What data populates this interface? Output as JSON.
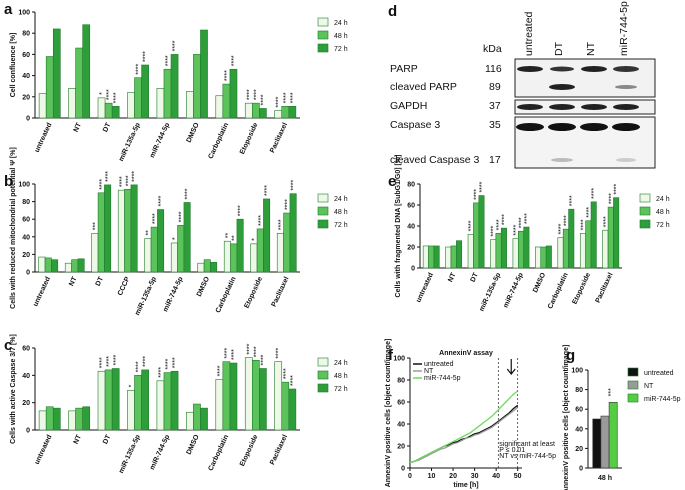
{
  "chart_data": [
    {
      "panel": "a",
      "type": "bar",
      "y_label": "Cell confluence [%]",
      "categories": [
        "untreated",
        "NT",
        "DT",
        "miR-135a-5p",
        "miR-744-5p",
        "DMSO",
        "Carboplatin",
        "Etoposide",
        "Paclitaxel"
      ],
      "series": [
        {
          "name": "24 h",
          "color": "#eef8e6",
          "values": [
            23,
            28,
            19,
            24,
            28,
            25,
            21,
            14,
            7
          ],
          "annotations": [
            null,
            null,
            "*",
            null,
            null,
            null,
            null,
            "****",
            "****"
          ]
        },
        {
          "name": "48 h",
          "color": "#5cc35c",
          "values": [
            58,
            66,
            14,
            38,
            46,
            60,
            32,
            14,
            11
          ],
          "annotations": [
            null,
            null,
            "****",
            "****",
            "****",
            null,
            "****",
            "****",
            "****"
          ]
        },
        {
          "name": "72 h",
          "color": "#2e9e3a",
          "values": [
            84,
            88,
            11,
            50,
            60,
            83,
            46,
            9,
            11
          ],
          "annotations": [
            null,
            null,
            "****",
            "****",
            "****",
            null,
            "****",
            "****",
            "****"
          ]
        }
      ],
      "ylim": [
        0,
        100
      ],
      "yticks": [
        0,
        20,
        40,
        60,
        80,
        100
      ]
    },
    {
      "panel": "b",
      "type": "bar",
      "y_label": "Cells with reduced mitochondrial potential Ψ [%]",
      "categories": [
        "untreated",
        "NT",
        "DT",
        "CCCP",
        "miR-135a-5p",
        "miR-744-5p",
        "DMSO",
        "Carboplatin",
        "Etoposide",
        "Paclitaxel"
      ],
      "series": [
        {
          "name": "24 h",
          "color": "#eef8e6",
          "values": [
            17,
            10,
            44,
            93,
            38,
            33,
            10,
            35,
            32,
            44
          ],
          "annotations": [
            null,
            null,
            "***",
            "****",
            "**",
            "*",
            null,
            "**",
            "*",
            "****"
          ]
        },
        {
          "name": "48 h",
          "color": "#5cc35c",
          "values": [
            16,
            14,
            90,
            94,
            51,
            53,
            14,
            32,
            49,
            67
          ],
          "annotations": [
            null,
            null,
            "****",
            "****",
            "****",
            "****",
            null,
            "**",
            "****",
            "****"
          ]
        },
        {
          "name": "72 h",
          "color": "#2e9e3a",
          "values": [
            14,
            15,
            99,
            99,
            71,
            79,
            11,
            60,
            83,
            89
          ],
          "annotations": [
            null,
            null,
            "****",
            "****",
            "****",
            "****",
            null,
            "****",
            "****",
            "****"
          ]
        }
      ],
      "ylim": [
        0,
        100
      ],
      "yticks": [
        0,
        20,
        40,
        60,
        80,
        100
      ]
    },
    {
      "panel": "c",
      "type": "bar",
      "y_label": "Cells with active Caspase 3/7 [%]",
      "categories": [
        "untreated",
        "NT",
        "DT",
        "miR-135a-5p",
        "miR-744-5p",
        "DMSO",
        "Carboplatin",
        "Etoposide",
        "Paclitaxel"
      ],
      "series": [
        {
          "name": "24 h",
          "color": "#eef8e6",
          "values": [
            14,
            14,
            43,
            29,
            36,
            13,
            37,
            53,
            50
          ],
          "annotations": [
            null,
            null,
            "****",
            "*",
            "****",
            null,
            "****",
            "****",
            "****"
          ]
        },
        {
          "name": "48 h",
          "color": "#5cc35c",
          "values": [
            17,
            16,
            44,
            40,
            42,
            19,
            50,
            51,
            35
          ],
          "annotations": [
            null,
            null,
            "****",
            "****",
            "****",
            null,
            "****",
            "****",
            "****"
          ]
        },
        {
          "name": "72 h",
          "color": "#2e9e3a",
          "values": [
            16,
            17,
            45,
            44,
            43,
            16,
            49,
            45,
            30
          ],
          "annotations": [
            null,
            null,
            "****",
            "****",
            "****",
            null,
            "****",
            "****",
            "****"
          ]
        }
      ],
      "ylim": [
        0,
        60
      ],
      "yticks": [
        0,
        20,
        40,
        60
      ]
    },
    {
      "panel": "e",
      "type": "bar",
      "y_label": "Cells with fragmented DNA [SubG1/G0] [%]",
      "categories": [
        "untreated",
        "NT",
        "DT",
        "miR-135a-5p",
        "miR-744-5p",
        "DMSO",
        "Carboplatin",
        "Etoposide",
        "Paclitaxel"
      ],
      "series": [
        {
          "name": "24 h",
          "color": "#eef8e6",
          "values": [
            21,
            20,
            32,
            27,
            28,
            20,
            29,
            33,
            36
          ],
          "annotations": [
            null,
            null,
            "****",
            "****",
            "****",
            null,
            "****",
            "****",
            "****"
          ]
        },
        {
          "name": "48 h",
          "color": "#5cc35c",
          "values": [
            21,
            21,
            62,
            33,
            35,
            20,
            37,
            45,
            58
          ],
          "annotations": [
            null,
            null,
            "****",
            "****",
            "****",
            null,
            "****",
            "****",
            "****"
          ]
        },
        {
          "name": "72 h",
          "color": "#2e9e3a",
          "values": [
            21,
            26,
            69,
            38,
            39,
            21,
            56,
            63,
            67
          ],
          "annotations": [
            null,
            null,
            "****",
            "****",
            "****",
            null,
            "****",
            "****",
            "****"
          ]
        }
      ],
      "ylim": [
        0,
        80
      ],
      "yticks": [
        0,
        20,
        40,
        60,
        80
      ]
    },
    {
      "panel": "f",
      "type": "line",
      "title": "AnnexinV assay",
      "x_label": "time [h]",
      "y_label": "AnnexinV positive cells [object count/image]",
      "x": [
        0,
        2,
        4,
        6,
        8,
        10,
        12,
        14,
        16,
        18,
        20,
        22,
        24,
        26,
        28,
        30,
        32,
        34,
        36,
        38,
        40,
        42,
        44,
        46,
        48,
        50
      ],
      "series": [
        {
          "name": "untreated",
          "color": "#111111",
          "values": [
            5,
            6,
            8,
            10,
            12,
            14,
            16,
            18,
            20,
            21,
            23,
            24,
            26,
            27,
            29,
            31,
            32,
            34,
            36,
            38,
            41,
            44,
            47,
            50,
            54,
            57
          ]
        },
        {
          "name": "NT",
          "color": "#9a9a9a",
          "values": [
            5,
            6,
            7,
            9,
            11,
            13,
            15,
            17,
            18,
            20,
            22,
            23,
            25,
            27,
            28,
            30,
            31,
            33,
            35,
            37,
            40,
            43,
            46,
            49,
            52,
            55
          ]
        },
        {
          "name": "miR-744-5p",
          "color": "#66dd55",
          "values": [
            5,
            6,
            8,
            10,
            12,
            14,
            16,
            18,
            20,
            22,
            24,
            26,
            28,
            30,
            32,
            35,
            38,
            41,
            44,
            47,
            51,
            55,
            59,
            63,
            67,
            70
          ]
        }
      ],
      "annotation": [
        "significant at least",
        "P ≤ 0.01",
        "NT vs miR-744-5p"
      ],
      "vlines": [
        41,
        50
      ],
      "arrow_x": 47,
      "xlim": [
        0,
        52
      ],
      "xticks": [
        0,
        10,
        20,
        30,
        40,
        50
      ],
      "ylim": [
        0,
        100
      ],
      "yticks": [
        0,
        20,
        40,
        60,
        80,
        100
      ]
    },
    {
      "panel": "g",
      "type": "bar",
      "y_label": "AnnexinV positive cells [object count/image]",
      "categories": [
        "48 h"
      ],
      "series": [
        {
          "name": "untreated",
          "color": "#111111",
          "values": [
            50
          ],
          "annotations": [
            null
          ]
        },
        {
          "name": "NT",
          "color": "#9a9a9a",
          "values": [
            53
          ],
          "annotations": [
            null
          ]
        },
        {
          "name": "miR-744-5p",
          "color": "#55cc44",
          "values": [
            67
          ],
          "annotations": [
            "***"
          ]
        }
      ],
      "ylim": [
        0,
        100
      ],
      "yticks": [
        0,
        20,
        40,
        60,
        80,
        100
      ]
    }
  ],
  "blot": {
    "panel": "d",
    "columns": [
      "untreated",
      "DT",
      "NT",
      "miR-744-5p"
    ],
    "kda_header": "kDa",
    "rows": [
      {
        "label": "PARP",
        "kda": 116
      },
      {
        "label": "cleaved PARP",
        "kda": 89
      },
      {
        "label": "GAPDH",
        "kda": 37
      },
      {
        "label": "Caspase 3",
        "kda": 35
      },
      {
        "label": "cleaved Caspase 3",
        "kda": 17
      }
    ]
  }
}
